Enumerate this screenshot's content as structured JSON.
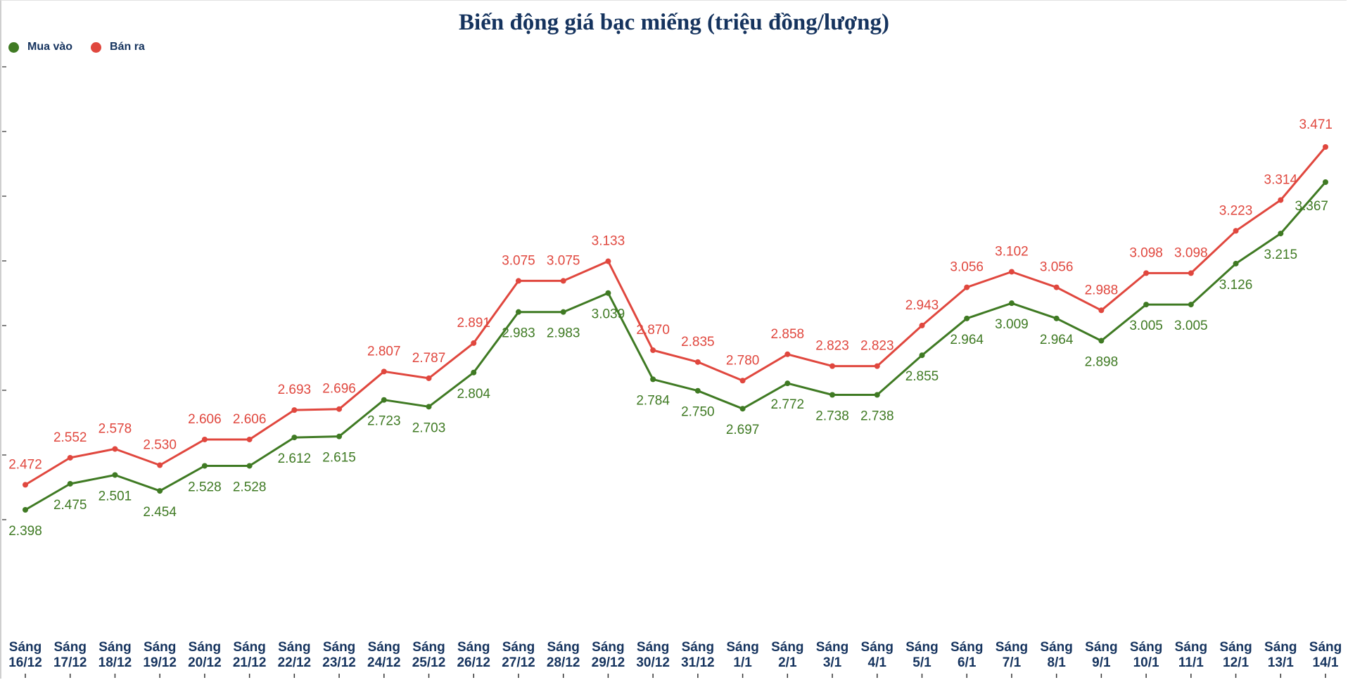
{
  "chart_data": {
    "type": "line",
    "title": "Biến động giá bạc miếng (triệu đồng/lượng)",
    "categories": [
      [
        "Sáng",
        "16/12"
      ],
      [
        "Sáng",
        "17/12"
      ],
      [
        "Sáng",
        "18/12"
      ],
      [
        "Sáng",
        "19/12"
      ],
      [
        "Sáng",
        "20/12"
      ],
      [
        "Sáng",
        "21/12"
      ],
      [
        "Sáng",
        "22/12"
      ],
      [
        "Sáng",
        "23/12"
      ],
      [
        "Sáng",
        "24/12"
      ],
      [
        "Sáng",
        "25/12"
      ],
      [
        "Sáng",
        "26/12"
      ],
      [
        "Sáng",
        "27/12"
      ],
      [
        "Sáng",
        "28/12"
      ],
      [
        "Sáng",
        "29/12"
      ],
      [
        "Sáng",
        "30/12"
      ],
      [
        "Sáng",
        "31/12"
      ],
      [
        "Sáng",
        "1/1"
      ],
      [
        "Sáng",
        "2/1"
      ],
      [
        "Sáng",
        "3/1"
      ],
      [
        "Sáng",
        "4/1"
      ],
      [
        "Sáng",
        "5/1"
      ],
      [
        "Sáng",
        "6/1"
      ],
      [
        "Sáng",
        "7/1"
      ],
      [
        "Sáng",
        "8/1"
      ],
      [
        "Sáng",
        "9/1"
      ],
      [
        "Sáng",
        "10/1"
      ],
      [
        "Sáng",
        "11/1"
      ],
      [
        "Sáng",
        "12/1"
      ],
      [
        "Sáng",
        "13/1"
      ],
      [
        "Sáng",
        "14/1"
      ]
    ],
    "series": [
      {
        "name": "Mua vào",
        "color": "#3f7a23",
        "values": [
          2.398,
          2.475,
          2.501,
          2.454,
          2.528,
          2.528,
          2.612,
          2.615,
          2.723,
          2.703,
          2.804,
          2.983,
          2.983,
          3.039,
          2.784,
          2.75,
          2.697,
          2.772,
          2.738,
          2.738,
          2.855,
          2.964,
          3.009,
          2.964,
          2.898,
          3.005,
          3.005,
          3.126,
          3.215,
          3.367
        ],
        "labels": [
          "2.398",
          "2.475",
          "2.501",
          "2.454",
          "2.528",
          "2.528",
          "2.612",
          "2.615",
          "2.723",
          "2.703",
          "2.804",
          "2.983",
          "2.983",
          "3.039",
          "2.784",
          "2.750",
          "2.697",
          "2.772",
          "2.738",
          "2.738",
          "2.855",
          "2.964",
          "3.009",
          "2.964",
          "2.898",
          "3.005",
          "3.005",
          "3.126",
          "3.215",
          "3.367"
        ]
      },
      {
        "name": "Bán ra",
        "color": "#e0473e",
        "values": [
          2.472,
          2.552,
          2.578,
          2.53,
          2.606,
          2.606,
          2.693,
          2.696,
          2.807,
          2.787,
          2.891,
          3.075,
          3.075,
          3.133,
          2.87,
          2.835,
          2.78,
          2.858,
          2.823,
          2.823,
          2.943,
          3.056,
          3.102,
          3.056,
          2.988,
          3.098,
          3.098,
          3.223,
          3.314,
          3.471
        ],
        "labels": [
          "2.472",
          "2.552",
          "2.578",
          "2.530",
          "2.606",
          "2.606",
          "2.693",
          "2.696",
          "2.807",
          "2.787",
          "2.891",
          "3.075",
          "3.075",
          "3.133",
          "2.870",
          "2.835",
          "2.780",
          "2.858",
          "2.823",
          "2.823",
          "2.943",
          "3.056",
          "3.102",
          "3.056",
          "2.988",
          "3.098",
          "3.098",
          "3.223",
          "3.314",
          "3.471"
        ]
      }
    ],
    "legend": "top-left",
    "grid": false
  }
}
